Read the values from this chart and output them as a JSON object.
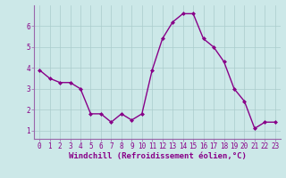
{
  "x": [
    0,
    1,
    2,
    3,
    4,
    5,
    6,
    7,
    8,
    9,
    10,
    11,
    12,
    13,
    14,
    15,
    16,
    17,
    18,
    19,
    20,
    21,
    22,
    23
  ],
  "y": [
    3.9,
    3.5,
    3.3,
    3.3,
    3.0,
    1.8,
    1.8,
    1.4,
    1.8,
    1.5,
    1.8,
    3.9,
    5.4,
    6.2,
    6.6,
    6.6,
    5.4,
    5.0,
    4.3,
    3.0,
    2.4,
    1.1,
    1.4,
    1.4
  ],
  "line_color": "#880088",
  "marker": "D",
  "marker_size": 2.0,
  "bg_color": "#cce8e8",
  "grid_color": "#aacccc",
  "xlabel": "Windchill (Refroidissement éolien,°C)",
  "xlim": [
    -0.5,
    23.5
  ],
  "ylim": [
    0.6,
    7.0
  ],
  "yticks": [
    1,
    2,
    3,
    4,
    5,
    6
  ],
  "xticks": [
    0,
    1,
    2,
    3,
    4,
    5,
    6,
    7,
    8,
    9,
    10,
    11,
    12,
    13,
    14,
    15,
    16,
    17,
    18,
    19,
    20,
    21,
    22,
    23
  ],
  "tick_label_fontsize": 5.5,
  "xlabel_fontsize": 6.5,
  "spine_color": "#9966aa",
  "axis_color": "#9966aa",
  "linewidth": 1.0
}
